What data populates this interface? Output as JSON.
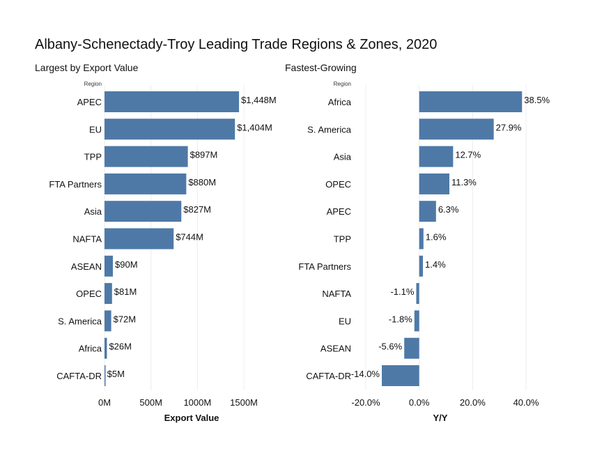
{
  "title": "Albany-Schenectady-Troy Leading Trade Regions & Zones, 2020",
  "chart_data": [
    {
      "type": "bar",
      "orientation": "horizontal",
      "subtitle": "Largest by Export Value",
      "row_header": "Region",
      "categories": [
        "APEC",
        "EU",
        "TPP",
        "FTA Partners",
        "Asia",
        "NAFTA",
        "ASEAN",
        "OPEC",
        "S. America",
        "Africa",
        "CAFTA-DR"
      ],
      "values": [
        1448,
        1404,
        897,
        880,
        827,
        744,
        90,
        81,
        72,
        26,
        5
      ],
      "data_labels": [
        "$1,448M",
        "$1,404M",
        "$897M",
        "$880M",
        "$827M",
        "$744M",
        "$90M",
        "$81M",
        "$72M",
        "$26M",
        "$5M"
      ],
      "xlabel": "Export Value",
      "xlim": [
        0,
        1500
      ],
      "xticks": [
        0,
        500,
        1000,
        1500
      ],
      "xtick_labels": [
        "0M",
        "500M",
        "1000M",
        "1500M"
      ],
      "color": "#4e79a7",
      "grid": true
    },
    {
      "type": "bar",
      "orientation": "horizontal",
      "subtitle": "Fastest-Growing",
      "row_header": "Region",
      "categories": [
        "Africa",
        "S. America",
        "Asia",
        "OPEC",
        "APEC",
        "TPP",
        "FTA Partners",
        "NAFTA",
        "EU",
        "ASEAN",
        "CAFTA-DR"
      ],
      "values": [
        38.5,
        27.9,
        12.7,
        11.3,
        6.3,
        1.6,
        1.4,
        -1.1,
        -1.8,
        -5.6,
        -14.0
      ],
      "data_labels": [
        "38.5%",
        "27.9%",
        "12.7%",
        "11.3%",
        "6.3%",
        "1.6%",
        "1.4%",
        "-1.1%",
        "-1.8%",
        "-5.6%",
        "-14.0%"
      ],
      "xlabel": "Y/Y",
      "xlim": [
        -20,
        40
      ],
      "xticks": [
        -20,
        0,
        20,
        40
      ],
      "xtick_labels": [
        "-20.0%",
        "0.0%",
        "20.0%",
        "40.0%"
      ],
      "color": "#4e79a7",
      "grid": true
    }
  ]
}
